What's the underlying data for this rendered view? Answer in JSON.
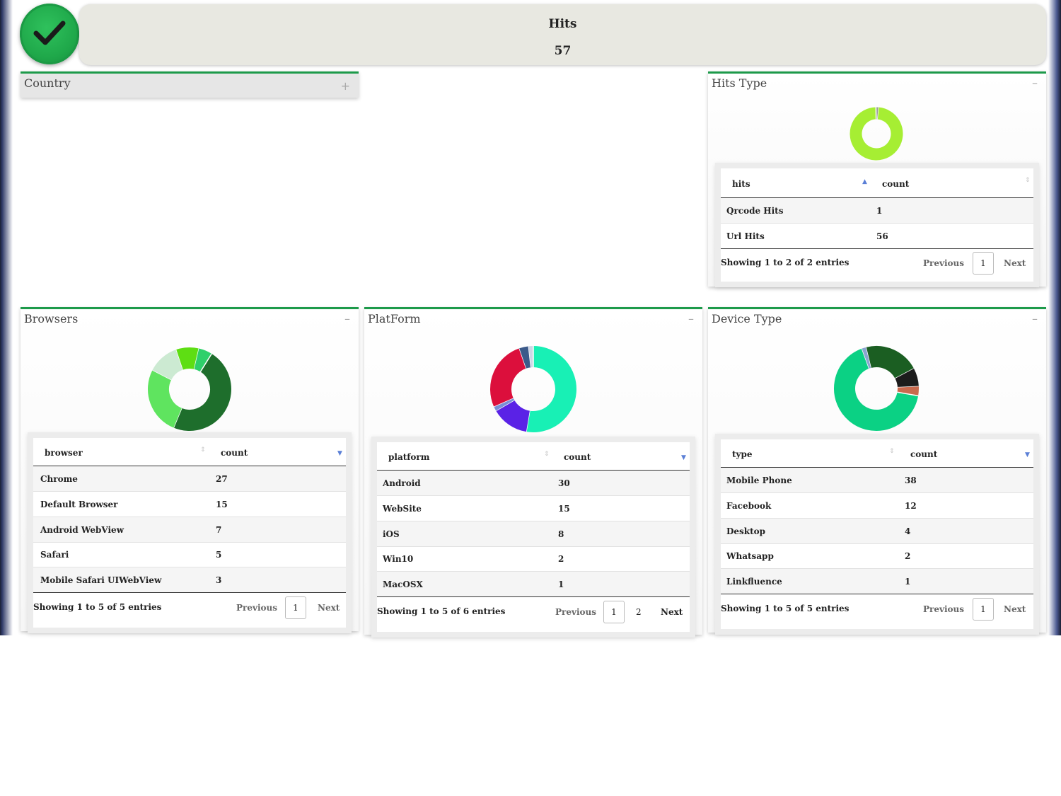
{
  "header": {
    "title": "Hits",
    "value": "57"
  },
  "country_panel": {
    "title": "Country",
    "tool": "+"
  },
  "hits_type": {
    "title": "Hits Type",
    "tool": "–",
    "columns": [
      "hits",
      "count"
    ],
    "rows": [
      [
        "Qrcode Hits",
        "1"
      ],
      [
        "Url Hits",
        "56"
      ]
    ],
    "info": "Showing 1 to 2 of 2 entries",
    "pager": {
      "prev": "Previous",
      "pages": [
        "1"
      ],
      "next": "Next"
    },
    "chart_data": {
      "type": "pie",
      "categories": [
        "Qrcode Hits",
        "Url Hits"
      ],
      "values": [
        1,
        56
      ],
      "colors": [
        "#9a9a9a",
        "#a6ee33"
      ]
    }
  },
  "browsers": {
    "title": "Browsers",
    "tool": "–",
    "columns": [
      "browser",
      "count"
    ],
    "rows": [
      [
        "Chrome",
        "27"
      ],
      [
        "Default Browser",
        "15"
      ],
      [
        "Android WebView",
        "7"
      ],
      [
        "Safari",
        "5"
      ],
      [
        "Mobile Safari UIWebView",
        "3"
      ]
    ],
    "info": "Showing 1 to 5 of 5 entries",
    "pager": {
      "prev": "Previous",
      "pages": [
        "1"
      ],
      "next": "Next"
    },
    "chart_data": {
      "type": "pie",
      "categories": [
        "Chrome",
        "Default Browser",
        "Android WebView",
        "Safari",
        "Mobile Safari UIWebView"
      ],
      "values": [
        27,
        15,
        7,
        5,
        3
      ],
      "colors": [
        "#1e6e2c",
        "#5fe45f",
        "#ccead2",
        "#5ede13",
        "#2ed06a"
      ]
    }
  },
  "platform": {
    "title": "PlatForm",
    "tool": "–",
    "columns": [
      "platform",
      "count"
    ],
    "rows": [
      [
        "Android",
        "30"
      ],
      [
        "WebSite",
        "15"
      ],
      [
        "iOS",
        "8"
      ],
      [
        "Win10",
        "2"
      ],
      [
        "MacOSX",
        "1"
      ]
    ],
    "info": "Showing 1 to 5 of 6 entries",
    "pager": {
      "prev": "Previous",
      "pages": [
        "1",
        "2"
      ],
      "next": "Next"
    },
    "chart_data": {
      "type": "pie",
      "categories": [
        "Android",
        "iOS",
        "",
        "WebSite",
        "Win10",
        "MacOSX"
      ],
      "values": [
        30,
        8,
        1,
        15,
        2,
        1
      ],
      "colors": [
        "#18f0b5",
        "#5a22e6",
        "#7a8fd6",
        "#dc0f3c",
        "#3b5a8a",
        "#cdd6e6"
      ]
    }
  },
  "device": {
    "title": "Device Type",
    "tool": "–",
    "columns": [
      "type",
      "count"
    ],
    "rows": [
      [
        "Mobile Phone",
        "38"
      ],
      [
        "Facebook",
        "12"
      ],
      [
        "Desktop",
        "4"
      ],
      [
        "Whatsapp",
        "2"
      ],
      [
        "Linkfluence",
        "1"
      ]
    ],
    "info": "Showing 1 to 5 of 5 entries",
    "pager": {
      "prev": "Previous",
      "pages": [
        "1"
      ],
      "next": "Next"
    },
    "chart_data": {
      "type": "pie",
      "categories": [
        "Mobile Phone",
        "",
        "Facebook",
        "Desktop",
        "Whatsapp"
      ],
      "values": [
        38,
        1,
        12,
        4,
        2
      ],
      "colors": [
        "#0bd184",
        "#8aa4d0",
        "#1b5e22",
        "#1c1c1c",
        "#c96a4e"
      ]
    }
  }
}
